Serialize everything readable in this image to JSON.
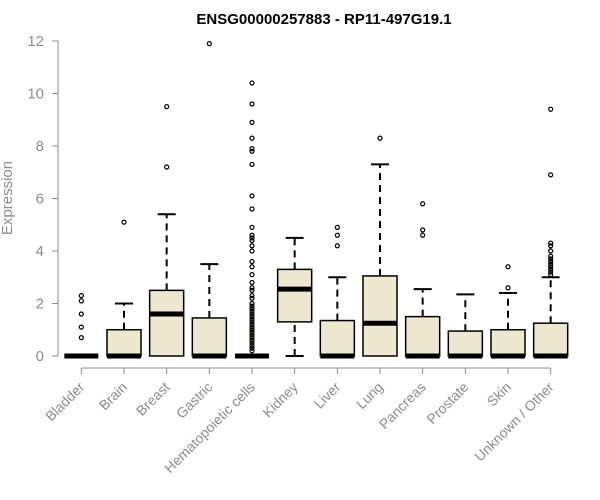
{
  "chart_data": {
    "type": "boxplot",
    "title": "ENSG00000257883 - RP11-497G19.1",
    "ylabel": "Expression",
    "xlabel": "",
    "ylim": [
      0,
      12
    ],
    "yticks": [
      0,
      2,
      4,
      6,
      8,
      10,
      12
    ],
    "grid": false,
    "legend": "none",
    "colors": {
      "box_fill": "#efe8d0",
      "stroke": "#000000",
      "axis": "#8c8c8c"
    },
    "categories": [
      "Bladder",
      "Brain",
      "Breast",
      "Gastric",
      "Hematopoietic cells",
      "Kidney",
      "Liver",
      "Lung",
      "Pancreas",
      "Prostate",
      "Skin",
      "Unknown / Other"
    ],
    "boxes": [
      {
        "category": "Bladder",
        "whisker_low": 0,
        "q1": 0,
        "median": 0,
        "q3": 0,
        "whisker_high": 0,
        "outliers": [
          2.3,
          2.1,
          1.6,
          1.1,
          0.7
        ]
      },
      {
        "category": "Brain",
        "whisker_low": 0,
        "q1": 0,
        "median": 0,
        "q3": 1.0,
        "whisker_high": 2.0,
        "outliers": [
          5.1
        ]
      },
      {
        "category": "Breast",
        "whisker_low": 0,
        "q1": 0,
        "median": 1.6,
        "q3": 2.5,
        "whisker_high": 5.4,
        "outliers": [
          9.5,
          7.2
        ]
      },
      {
        "category": "Gastric",
        "whisker_low": 0,
        "q1": 0,
        "median": 0,
        "q3": 1.45,
        "whisker_high": 3.5,
        "outliers": [
          11.9
        ]
      },
      {
        "category": "Hematopoietic cells",
        "whisker_low": 0,
        "q1": 0,
        "median": 0,
        "q3": 0,
        "whisker_high": 0,
        "outliers": [
          10.4,
          9.6,
          8.9,
          8.3,
          7.9,
          7.8,
          7.3,
          6.1,
          5.6,
          4.9,
          4.6,
          4.5,
          4.4,
          4.2,
          4.0,
          3.6,
          3.4,
          3.1,
          2.8,
          2.6,
          2.5,
          2.3,
          2.2,
          2.0,
          1.9,
          1.8,
          1.7,
          1.6,
          1.5,
          1.4,
          1.3,
          1.2,
          1.1,
          1.0,
          0.9,
          0.8,
          0.7,
          0.6,
          0.5,
          0.4,
          0.3,
          0.2
        ]
      },
      {
        "category": "Kidney",
        "whisker_low": 0,
        "q1": 1.3,
        "median": 2.55,
        "q3": 3.3,
        "whisker_high": 4.5,
        "outliers": []
      },
      {
        "category": "Liver",
        "whisker_low": 0,
        "q1": 0,
        "median": 0,
        "q3": 1.35,
        "whisker_high": 3.0,
        "outliers": [
          4.9,
          4.6,
          4.2
        ]
      },
      {
        "category": "Lung",
        "whisker_low": 0,
        "q1": 0,
        "median": 1.25,
        "q3": 3.05,
        "whisker_high": 7.3,
        "outliers": [
          8.3
        ]
      },
      {
        "category": "Pancreas",
        "whisker_low": 0,
        "q1": 0,
        "median": 0,
        "q3": 1.5,
        "whisker_high": 2.55,
        "outliers": [
          5.8,
          4.8,
          4.6
        ]
      },
      {
        "category": "Prostate",
        "whisker_low": 0,
        "q1": 0,
        "median": 0,
        "q3": 0.95,
        "whisker_high": 2.35,
        "outliers": []
      },
      {
        "category": "Skin",
        "whisker_low": 0,
        "q1": 0,
        "median": 0,
        "q3": 1.0,
        "whisker_high": 2.4,
        "outliers": [
          3.4,
          2.6
        ]
      },
      {
        "category": "Unknown / Other",
        "whisker_low": 0,
        "q1": 0,
        "median": 0,
        "q3": 1.25,
        "whisker_high": 3.0,
        "outliers": [
          9.4,
          6.9,
          4.3,
          4.2,
          4.0,
          3.8,
          3.7,
          3.6,
          3.5,
          3.4,
          3.3,
          3.2,
          3.1
        ]
      }
    ]
  }
}
